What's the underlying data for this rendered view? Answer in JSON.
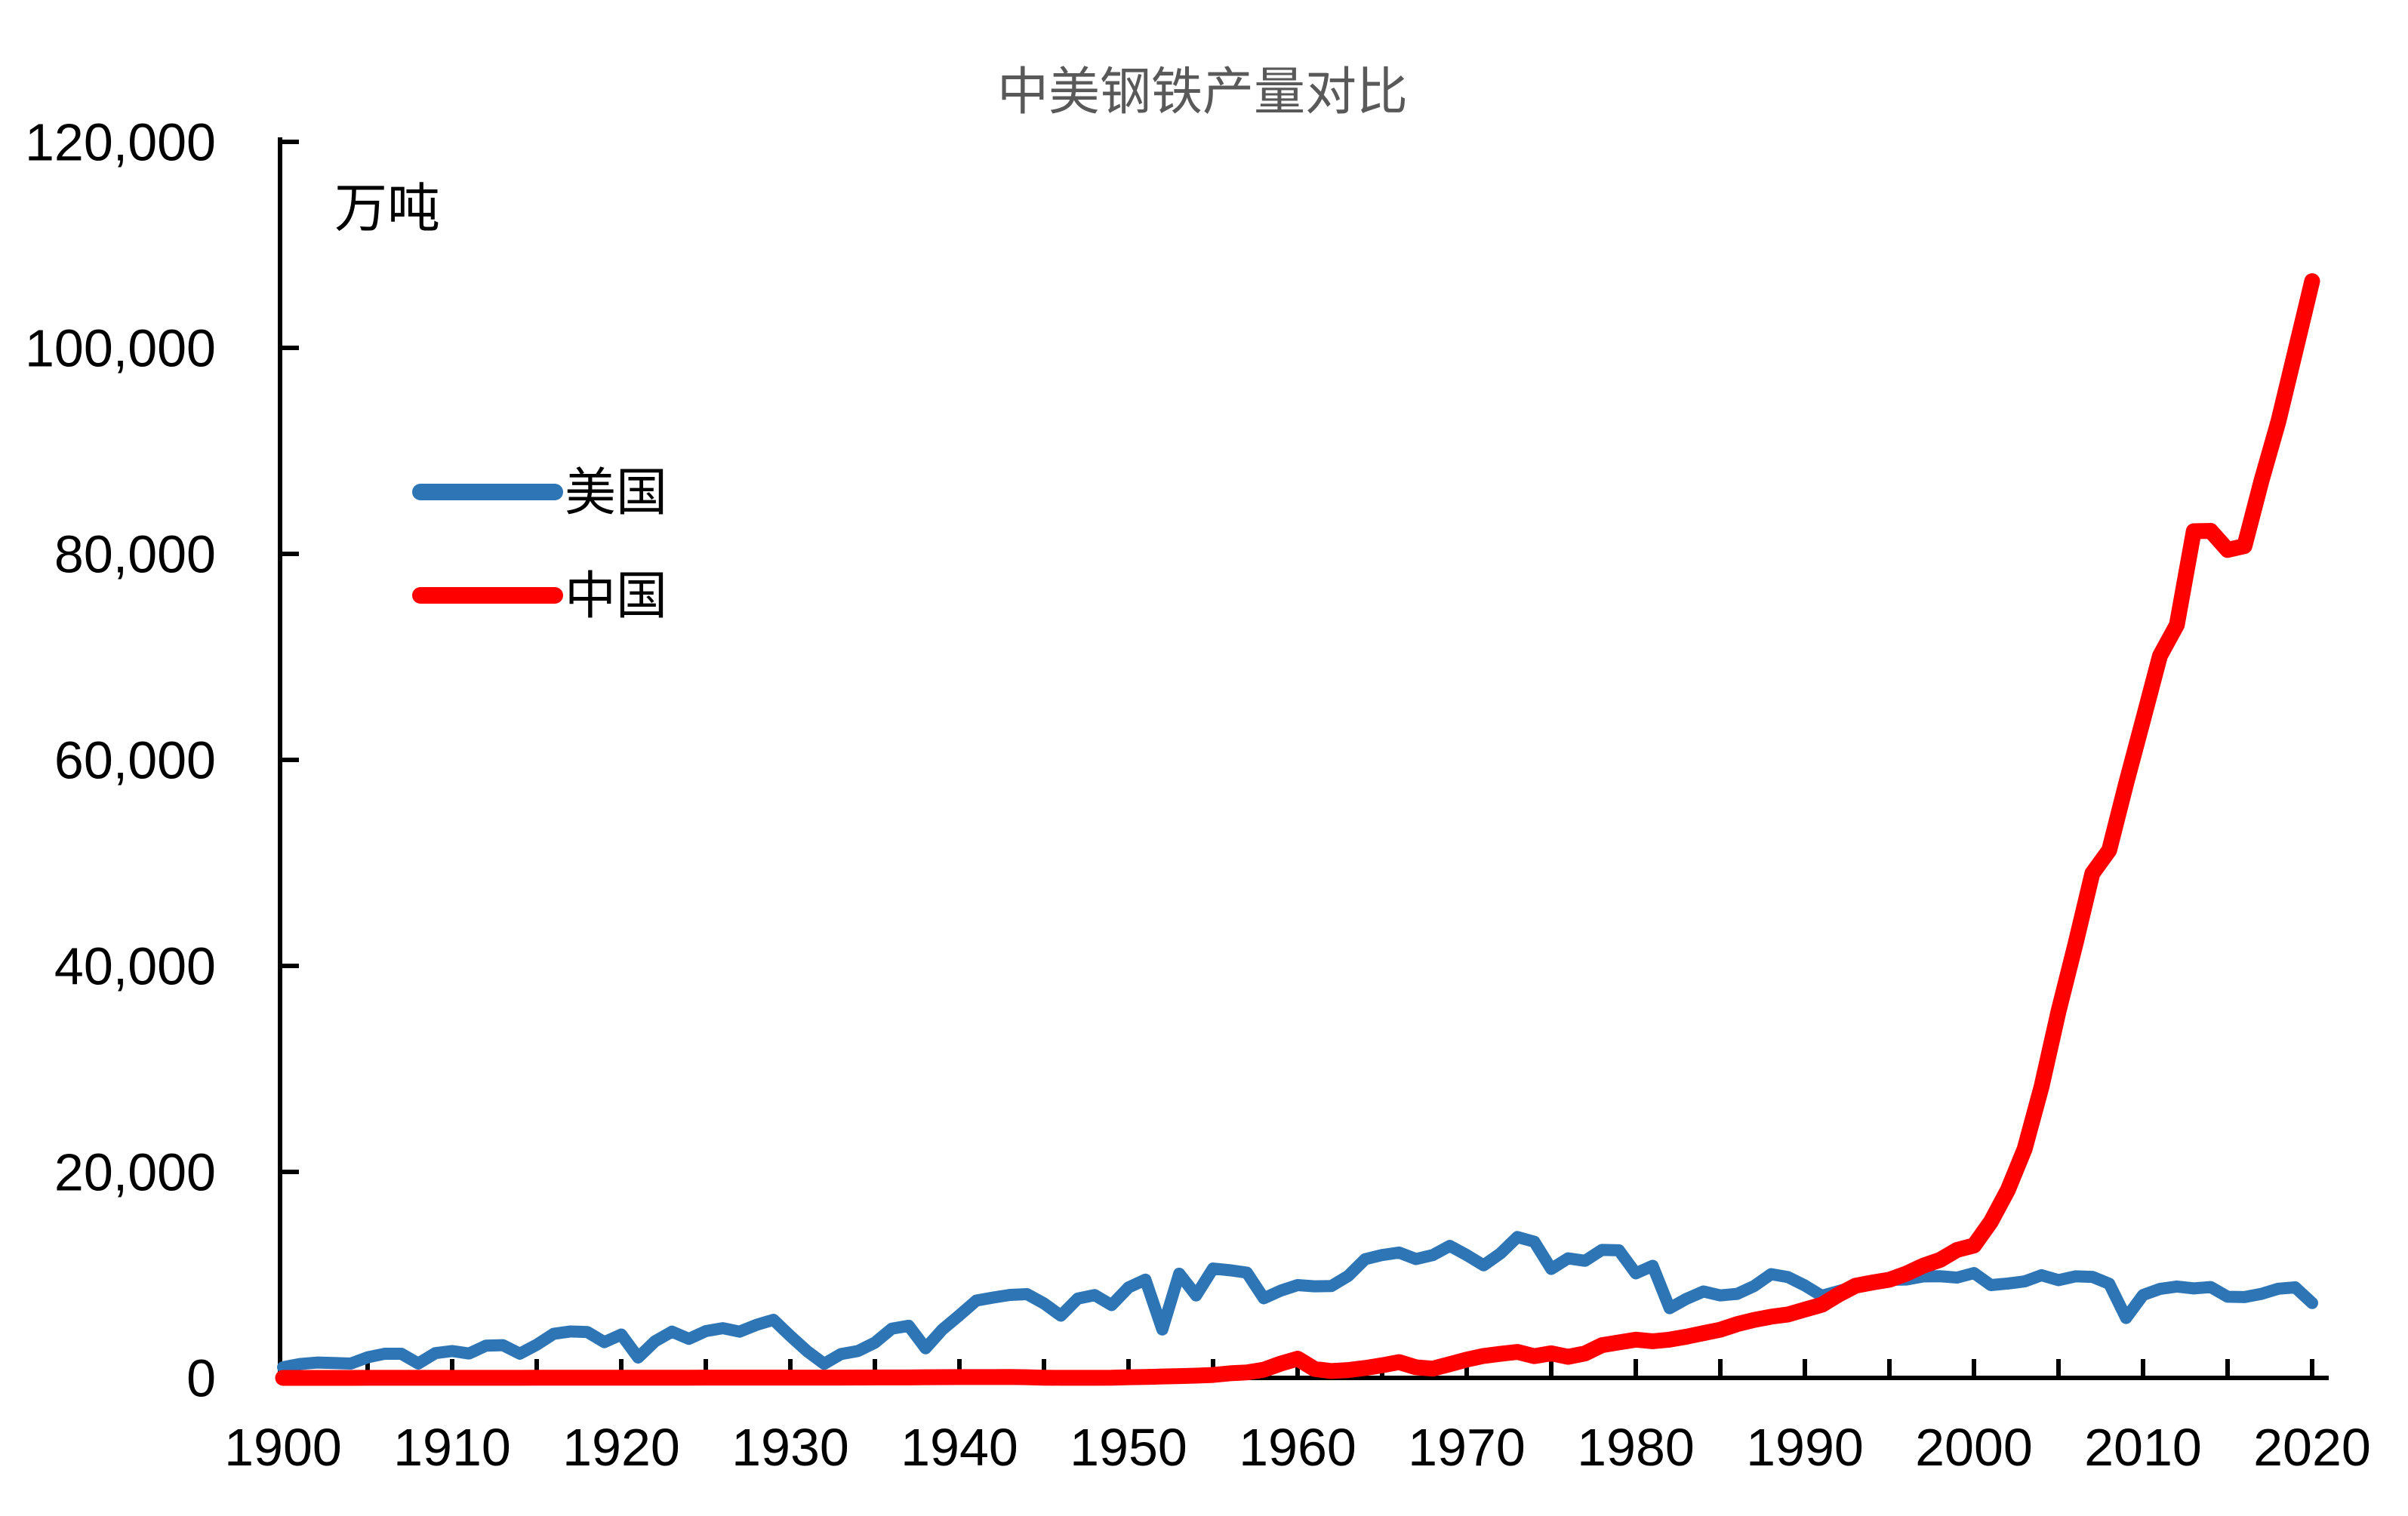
{
  "title": {
    "text": "中美钢铁产量对比"
  },
  "unit_label": "万吨",
  "legend": [
    {
      "label": "美国",
      "color": "#2E75B6"
    },
    {
      "label": "中国",
      "color": "#FF0000"
    }
  ],
  "colors": {
    "us_line": "#2E75B6",
    "china_line": "#FF0000",
    "title_text": "#595959",
    "axis": "#000000",
    "background": "#FFFFFF"
  },
  "chart_data": {
    "type": "line",
    "title": "中美钢铁产量对比",
    "xlabel": "",
    "ylabel": "万吨",
    "ylim": [
      0,
      120000
    ],
    "xlim": [
      1900,
      2020
    ],
    "grid": false,
    "legend_position": "inside-upper-left",
    "y_ticks": [
      0,
      20000,
      40000,
      60000,
      80000,
      100000,
      120000
    ],
    "y_tick_labels": [
      "0",
      "20,000",
      "40,000",
      "60,000",
      "80,000",
      "100,000",
      "120,000"
    ],
    "x_major_tick_labels": [
      "1900",
      "1910",
      "1920",
      "1930",
      "1940",
      "1950",
      "1960",
      "1970",
      "1980",
      "1990",
      "2000",
      "2010",
      "2020"
    ],
    "x_minor_tick_step_years": 5,
    "x": [
      1900,
      1901,
      1902,
      1903,
      1904,
      1905,
      1906,
      1907,
      1908,
      1909,
      1910,
      1911,
      1912,
      1913,
      1914,
      1915,
      1916,
      1917,
      1918,
      1919,
      1920,
      1921,
      1922,
      1923,
      1924,
      1925,
      1926,
      1927,
      1928,
      1929,
      1930,
      1931,
      1932,
      1933,
      1934,
      1935,
      1936,
      1937,
      1938,
      1939,
      1940,
      1941,
      1942,
      1943,
      1944,
      1945,
      1946,
      1947,
      1948,
      1949,
      1950,
      1951,
      1952,
      1953,
      1954,
      1955,
      1956,
      1957,
      1958,
      1959,
      1960,
      1961,
      1962,
      1963,
      1964,
      1965,
      1966,
      1967,
      1968,
      1969,
      1970,
      1971,
      1972,
      1973,
      1974,
      1975,
      1976,
      1977,
      1978,
      1979,
      1980,
      1981,
      1982,
      1983,
      1984,
      1985,
      1986,
      1987,
      1988,
      1989,
      1990,
      1991,
      1992,
      1993,
      1994,
      1995,
      1996,
      1997,
      1998,
      1999,
      2000,
      2001,
      2002,
      2003,
      2004,
      2005,
      2006,
      2007,
      2008,
      2009,
      2010,
      2011,
      2012,
      2013,
      2014,
      2015,
      2016,
      2017,
      2018,
      2019,
      2020
    ],
    "series": [
      {
        "name": "美国",
        "color": "#2E75B6",
        "values": [
          1040,
          1350,
          1490,
          1450,
          1390,
          2000,
          2340,
          2340,
          1400,
          2400,
          2610,
          2370,
          3130,
          3180,
          2350,
          3220,
          4280,
          4510,
          4450,
          3470,
          4210,
          1980,
          3560,
          4490,
          3790,
          4540,
          4830,
          4490,
          5150,
          5640,
          4070,
          2590,
          1370,
          2320,
          2610,
          3420,
          4780,
          5060,
          2880,
          4710,
          6080,
          7510,
          7800,
          8060,
          8130,
          7230,
          6040,
          7700,
          8040,
          7070,
          8780,
          9540,
          4700,
          10120,
          8010,
          10620,
          10450,
          10220,
          7730,
          8470,
          9010,
          8890,
          8920,
          9910,
          11530,
          11930,
          12170,
          11540,
          11930,
          12820,
          11930,
          10930,
          12090,
          13680,
          13220,
          10580,
          11610,
          11370,
          12430,
          12390,
          10150,
          10880,
          6770,
          7680,
          8390,
          8010,
          8160,
          8920,
          10070,
          9790,
          8970,
          7970,
          8430,
          8880,
          9120,
          9520,
          9550,
          9850,
          9870,
          9740,
          10180,
          9010,
          9160,
          9370,
          9970,
          9490,
          9860,
          9810,
          9140,
          5820,
          8050,
          8640,
          8870,
          8690,
          8820,
          7880,
          7850,
          8160,
          8660,
          8790,
          7270
        ]
      },
      {
        "name": "中国",
        "color": "#FF0000",
        "values": [
          2,
          2,
          3,
          3,
          3,
          5,
          5,
          5,
          6,
          7,
          8,
          7,
          5,
          8,
          10,
          15,
          15,
          15,
          15,
          20,
          20,
          20,
          20,
          20,
          20,
          25,
          25,
          25,
          25,
          25,
          25,
          30,
          30,
          30,
          35,
          50,
          50,
          50,
          60,
          70,
          80,
          80,
          80,
          90,
          60,
          20,
          10,
          10,
          10,
          16,
          61,
          90,
          135,
          177,
          223,
          285,
          447,
          535,
          800,
          1387,
          1866,
          870,
          667,
          762,
          964,
          1223,
          1532,
          1029,
          904,
          1333,
          1779,
          2132,
          2338,
          2522,
          2112,
          2390,
          2046,
          2374,
          3178,
          3448,
          3712,
          3560,
          3716,
          4002,
          4347,
          4679,
          5221,
          5628,
          5943,
          6159,
          6635,
          7100,
          8094,
          8954,
          9261,
          9536,
          10124,
          10891,
          11459,
          12426,
          12850,
          15163,
          18225,
          22234,
          28291,
          35579,
          42102,
          48971,
          51234,
          57707,
          63874,
          70100,
          73104,
          82200,
          82231,
          80383,
          80761,
          87074,
          92826,
          99634,
          106477
        ]
      }
    ]
  }
}
